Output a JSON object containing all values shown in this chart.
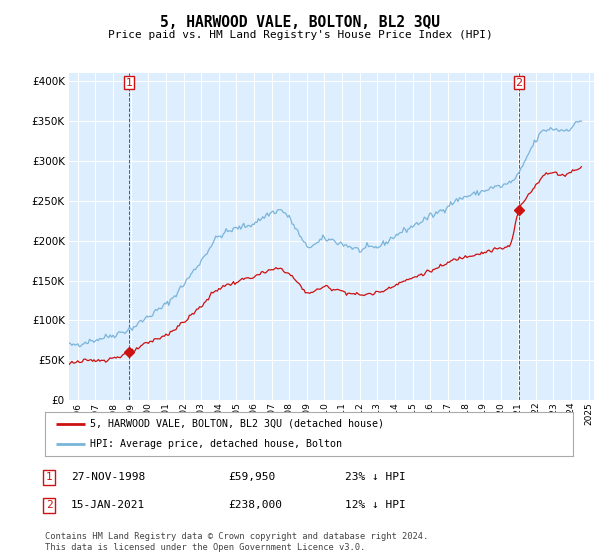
{
  "title": "5, HARWOOD VALE, BOLTON, BL2 3QU",
  "subtitle": "Price paid vs. HM Land Registry's House Price Index (HPI)",
  "legend_label1": "5, HARWOOD VALE, BOLTON, BL2 3QU (detached house)",
  "legend_label2": "HPI: Average price, detached house, Bolton",
  "footer": "Contains HM Land Registry data © Crown copyright and database right 2024.\nThis data is licensed under the Open Government Licence v3.0.",
  "transaction1": {
    "num": "1",
    "date": "27-NOV-1998",
    "price": "£59,950",
    "hpi": "23% ↓ HPI"
  },
  "transaction2": {
    "num": "2",
    "date": "15-JAN-2021",
    "price": "£238,000",
    "hpi": "12% ↓ HPI"
  },
  "ylim": [
    0,
    410000
  ],
  "yticks": [
    0,
    50000,
    100000,
    150000,
    200000,
    250000,
    300000,
    350000,
    400000
  ],
  "hpi_color": "#7ab4d8",
  "price_color": "#cc1111",
  "marker_color": "#cc1111",
  "vline_color": "#cc1111",
  "bg_color": "#ddeeff",
  "grid_color": "#ffffff",
  "sale1_year": 1998.91,
  "sale1_value": 59950,
  "sale2_year": 2021.04,
  "sale2_value": 238000,
  "vline1_x": 1998.91,
  "vline2_x": 2021.04,
  "xlim_left": 1995.5,
  "xlim_right": 2025.3
}
